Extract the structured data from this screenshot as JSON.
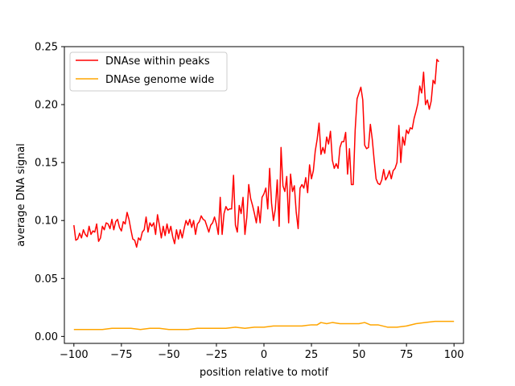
{
  "chart_data": {
    "type": "line",
    "title": "",
    "xlabel": "position relative to motif",
    "ylabel": "average DNA signal",
    "xlim": [
      -105,
      105
    ],
    "ylim": [
      -0.006,
      0.25
    ],
    "grid": false,
    "legend_position": "top-left",
    "x_ticks": [
      -100,
      -75,
      -50,
      -25,
      0,
      25,
      50,
      75,
      100
    ],
    "x_tick_labels": [
      "−100",
      "−75",
      "−50",
      "−25",
      "0",
      "25",
      "50",
      "75",
      "100"
    ],
    "y_ticks": [
      0.0,
      0.05,
      0.1,
      0.15,
      0.2,
      0.25
    ],
    "y_tick_labels": [
      "0.00",
      "0.05",
      "0.10",
      "0.15",
      "0.20",
      "0.25"
    ],
    "series": [
      {
        "name": "DNAse within peaks",
        "color": "#ff0000",
        "points": [
          [
            -100,
            0.096
          ],
          [
            -99,
            0.083
          ],
          [
            -98,
            0.084
          ],
          [
            -97,
            0.089
          ],
          [
            -96,
            0.085
          ],
          [
            -95,
            0.092
          ],
          [
            -94,
            0.088
          ],
          [
            -93,
            0.086
          ],
          [
            -92,
            0.095
          ],
          [
            -91,
            0.088
          ],
          [
            -90,
            0.091
          ],
          [
            -89,
            0.09
          ],
          [
            -88,
            0.097
          ],
          [
            -87,
            0.082
          ],
          [
            -86,
            0.085
          ],
          [
            -85,
            0.095
          ],
          [
            -84,
            0.092
          ],
          [
            -83,
            0.098
          ],
          [
            -82,
            0.097
          ],
          [
            -81,
            0.093
          ],
          [
            -80,
            0.101
          ],
          [
            -79,
            0.092
          ],
          [
            -78,
            0.099
          ],
          [
            -77,
            0.101
          ],
          [
            -76,
            0.094
          ],
          [
            -75,
            0.091
          ],
          [
            -74,
            0.099
          ],
          [
            -73,
            0.097
          ],
          [
            -72,
            0.107
          ],
          [
            -71,
            0.101
          ],
          [
            -70,
            0.092
          ],
          [
            -69,
            0.084
          ],
          [
            -68,
            0.083
          ],
          [
            -67,
            0.077
          ],
          [
            -66,
            0.085
          ],
          [
            -65,
            0.083
          ],
          [
            -64,
            0.09
          ],
          [
            -63,
            0.092
          ],
          [
            -62,
            0.103
          ],
          [
            -61,
            0.09
          ],
          [
            -60,
            0.098
          ],
          [
            -59,
            0.095
          ],
          [
            -58,
            0.098
          ],
          [
            -57,
            0.088
          ],
          [
            -56,
            0.105
          ],
          [
            -55,
            0.096
          ],
          [
            -54,
            0.085
          ],
          [
            -53,
            0.095
          ],
          [
            -52,
            0.087
          ],
          [
            -51,
            0.097
          ],
          [
            -50,
            0.089
          ],
          [
            -49,
            0.095
          ],
          [
            -48,
            0.086
          ],
          [
            -47,
            0.08
          ],
          [
            -46,
            0.092
          ],
          [
            -45,
            0.084
          ],
          [
            -44,
            0.092
          ],
          [
            -43,
            0.085
          ],
          [
            -42,
            0.093
          ],
          [
            -41,
            0.1
          ],
          [
            -40,
            0.096
          ],
          [
            -39,
            0.101
          ],
          [
            -38,
            0.094
          ],
          [
            -37,
            0.1
          ],
          [
            -36,
            0.088
          ],
          [
            -35,
            0.097
          ],
          [
            -34,
            0.099
          ],
          [
            -33,
            0.104
          ],
          [
            -32,
            0.101
          ],
          [
            -31,
            0.1
          ],
          [
            -30,
            0.095
          ],
          [
            -29,
            0.09
          ],
          [
            -28,
            0.096
          ],
          [
            -27,
            0.098
          ],
          [
            -26,
            0.103
          ],
          [
            -25,
            0.097
          ],
          [
            -24,
            0.088
          ],
          [
            -23,
            0.12
          ],
          [
            -22,
            0.088
          ],
          [
            -21,
            0.106
          ],
          [
            -20,
            0.112
          ],
          [
            -19,
            0.109
          ],
          [
            -18,
            0.11
          ],
          [
            -17,
            0.11
          ],
          [
            -16,
            0.139
          ],
          [
            -15,
            0.096
          ],
          [
            -14,
            0.09
          ],
          [
            -13,
            0.113
          ],
          [
            -12,
            0.106
          ],
          [
            -11,
            0.12
          ],
          [
            -10,
            0.088
          ],
          [
            -9,
            0.103
          ],
          [
            -8,
            0.131
          ],
          [
            -7,
            0.119
          ],
          [
            -6,
            0.113
          ],
          [
            -5,
            0.106
          ],
          [
            -4,
            0.098
          ],
          [
            -3,
            0.112
          ],
          [
            -2,
            0.098
          ],
          [
            -1,
            0.12
          ],
          [
            0,
            0.123
          ],
          [
            1,
            0.128
          ],
          [
            2,
            0.11
          ],
          [
            3,
            0.145
          ],
          [
            4,
            0.115
          ],
          [
            5,
            0.1
          ],
          [
            6,
            0.11
          ],
          [
            7,
            0.135
          ],
          [
            8,
            0.095
          ],
          [
            9,
            0.163
          ],
          [
            10,
            0.13
          ],
          [
            11,
            0.125
          ],
          [
            12,
            0.138
          ],
          [
            13,
            0.098
          ],
          [
            14,
            0.14
          ],
          [
            15,
            0.125
          ],
          [
            16,
            0.13
          ],
          [
            17,
            0.107
          ],
          [
            18,
            0.093
          ],
          [
            19,
            0.128
          ],
          [
            20,
            0.131
          ],
          [
            21,
            0.128
          ],
          [
            22,
            0.137
          ],
          [
            23,
            0.124
          ],
          [
            24,
            0.148
          ],
          [
            25,
            0.136
          ],
          [
            26,
            0.143
          ],
          [
            27,
            0.16
          ],
          [
            28,
            0.17
          ],
          [
            29,
            0.184
          ],
          [
            30,
            0.157
          ],
          [
            31,
            0.163
          ],
          [
            32,
            0.158
          ],
          [
            33,
            0.172
          ],
          [
            34,
            0.166
          ],
          [
            35,
            0.177
          ],
          [
            36,
            0.152
          ],
          [
            37,
            0.145
          ],
          [
            38,
            0.149
          ],
          [
            39,
            0.145
          ],
          [
            40,
            0.163
          ],
          [
            41,
            0.168
          ],
          [
            42,
            0.168
          ],
          [
            43,
            0.176
          ],
          [
            44,
            0.14
          ],
          [
            45,
            0.162
          ],
          [
            46,
            0.131
          ],
          [
            47,
            0.131
          ],
          [
            48,
            0.178
          ],
          [
            49,
            0.205
          ],
          [
            50,
            0.21
          ],
          [
            51,
            0.215
          ],
          [
            52,
            0.204
          ],
          [
            53,
            0.165
          ],
          [
            54,
            0.162
          ],
          [
            55,
            0.163
          ],
          [
            56,
            0.183
          ],
          [
            57,
            0.17
          ],
          [
            58,
            0.152
          ],
          [
            59,
            0.136
          ],
          [
            60,
            0.132
          ],
          [
            61,
            0.131
          ],
          [
            62,
            0.135
          ],
          [
            63,
            0.144
          ],
          [
            64,
            0.135
          ],
          [
            65,
            0.138
          ],
          [
            66,
            0.143
          ],
          [
            67,
            0.136
          ],
          [
            68,
            0.143
          ],
          [
            69,
            0.145
          ],
          [
            70,
            0.15
          ],
          [
            71,
            0.182
          ],
          [
            72,
            0.15
          ],
          [
            73,
            0.172
          ],
          [
            74,
            0.165
          ],
          [
            75,
            0.178
          ],
          [
            76,
            0.175
          ],
          [
            77,
            0.18
          ],
          [
            78,
            0.179
          ],
          [
            79,
            0.188
          ],
          [
            80,
            0.194
          ],
          [
            81,
            0.201
          ],
          [
            82,
            0.216
          ],
          [
            83,
            0.21
          ],
          [
            84,
            0.228
          ],
          [
            85,
            0.2
          ],
          [
            86,
            0.204
          ],
          [
            87,
            0.196
          ],
          [
            88,
            0.203
          ],
          [
            89,
            0.221
          ],
          [
            90,
            0.218
          ],
          [
            91,
            0.239
          ],
          [
            92,
            0.237
          ]
        ]
      },
      {
        "name": "DNAse genome wide",
        "color": "#ffa500",
        "points": [
          [
            -100,
            0.006
          ],
          [
            -95,
            0.006
          ],
          [
            -90,
            0.006
          ],
          [
            -85,
            0.006
          ],
          [
            -80,
            0.007
          ],
          [
            -75,
            0.007
          ],
          [
            -70,
            0.007
          ],
          [
            -65,
            0.006
          ],
          [
            -60,
            0.007
          ],
          [
            -55,
            0.007
          ],
          [
            -50,
            0.006
          ],
          [
            -45,
            0.006
          ],
          [
            -40,
            0.006
          ],
          [
            -35,
            0.007
          ],
          [
            -30,
            0.007
          ],
          [
            -25,
            0.007
          ],
          [
            -20,
            0.007
          ],
          [
            -15,
            0.008
          ],
          [
            -10,
            0.007
          ],
          [
            -5,
            0.008
          ],
          [
            0,
            0.008
          ],
          [
            5,
            0.009
          ],
          [
            10,
            0.009
          ],
          [
            15,
            0.009
          ],
          [
            20,
            0.009
          ],
          [
            25,
            0.01
          ],
          [
            28,
            0.01
          ],
          [
            30,
            0.012
          ],
          [
            33,
            0.011
          ],
          [
            36,
            0.012
          ],
          [
            40,
            0.011
          ],
          [
            45,
            0.011
          ],
          [
            50,
            0.011
          ],
          [
            53,
            0.012
          ],
          [
            56,
            0.01
          ],
          [
            60,
            0.01
          ],
          [
            65,
            0.008
          ],
          [
            70,
            0.008
          ],
          [
            75,
            0.009
          ],
          [
            80,
            0.011
          ],
          [
            85,
            0.012
          ],
          [
            90,
            0.013
          ],
          [
            95,
            0.013
          ],
          [
            100,
            0.013
          ]
        ]
      }
    ]
  }
}
